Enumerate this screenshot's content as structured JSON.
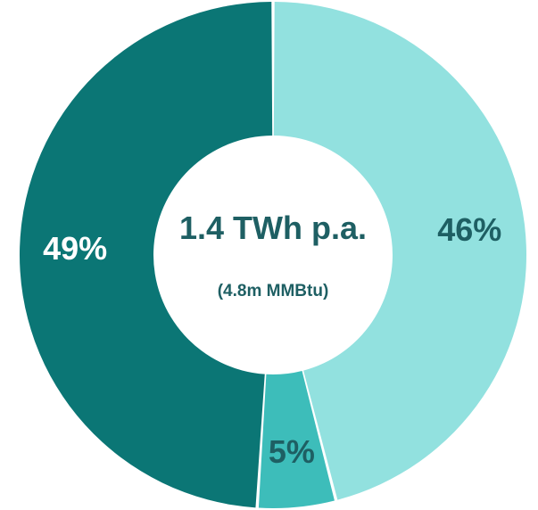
{
  "chart_data": {
    "type": "pie",
    "donut": true,
    "center": {
      "title": "1.4 TWh p.a.",
      "subtitle": "(4.8m MMBtu)"
    },
    "slices": [
      {
        "label": "46%",
        "value": 46,
        "color": "#92E1DF",
        "label_color": "#1E5F63"
      },
      {
        "label": "5%",
        "value": 5,
        "color": "#3DBDBA",
        "label_color": "#1E5F63"
      },
      {
        "label": "49%",
        "value": 49,
        "color": "#0B7675",
        "label_color": "#FFFFFF"
      }
    ],
    "center_text_color": "#1E5F63",
    "separator_color": "#FFFFFF"
  }
}
